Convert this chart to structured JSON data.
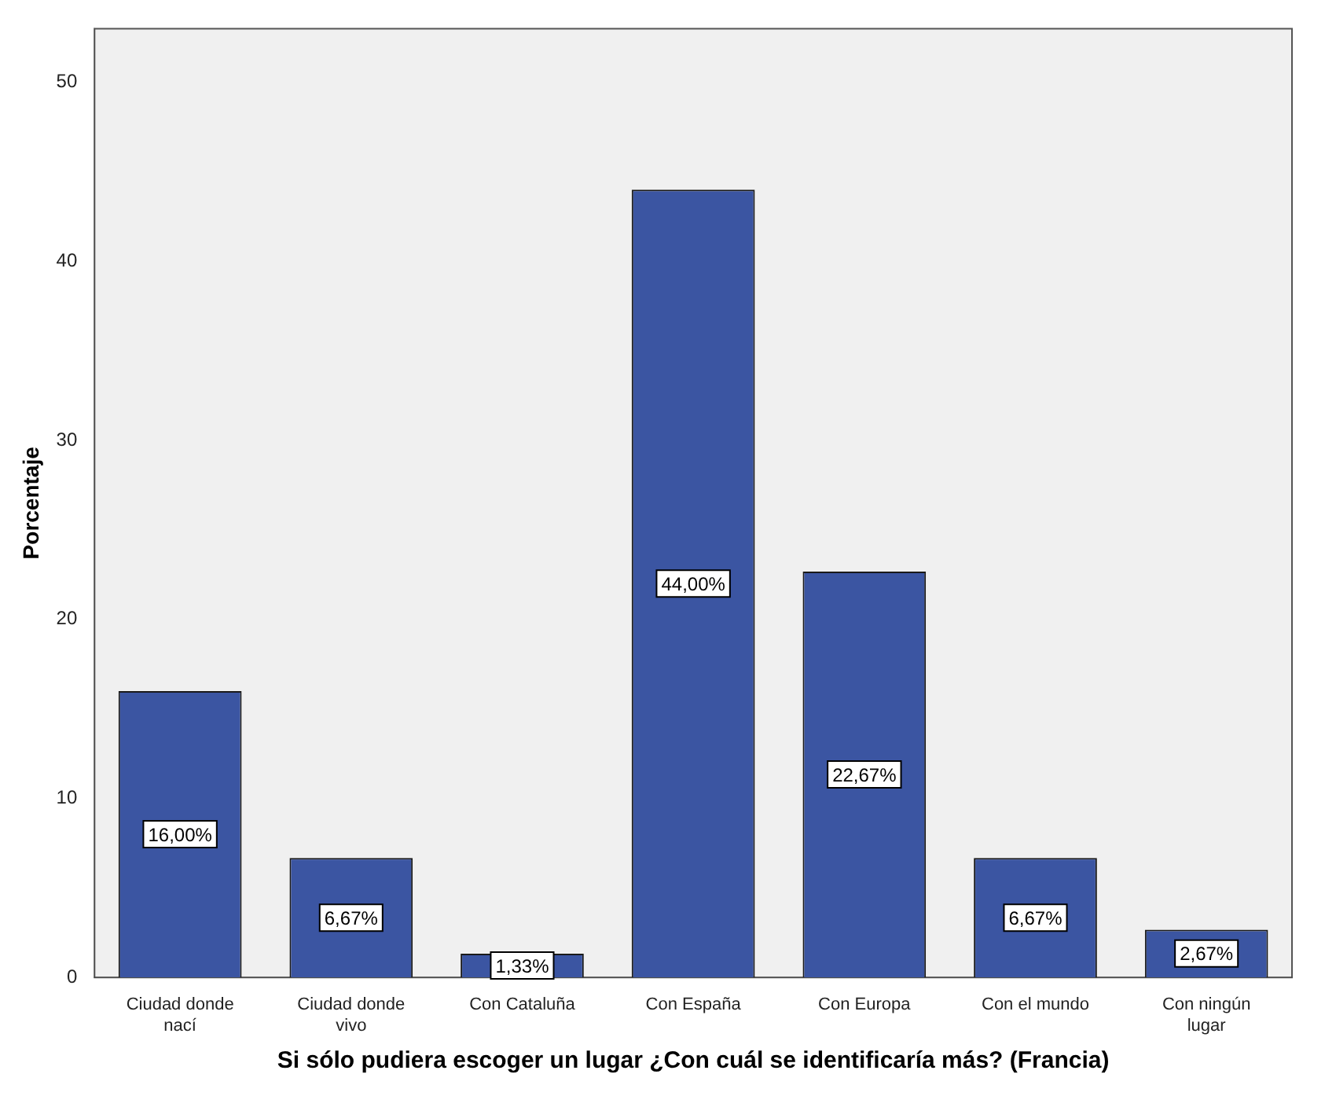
{
  "chart_data": {
    "type": "bar",
    "xlabel": "Si sólo pudiera escoger un lugar ¿Con cuál se identificaría más? (Francia)",
    "ylabel": "Porcentaje",
    "categories": [
      "Ciudad donde nací",
      "Ciudad donde vivo",
      "Con Cataluña",
      "Con España",
      "Con Europa",
      "Con el mundo",
      "Con ningún lugar"
    ],
    "values": [
      16.0,
      6.67,
      1.33,
      44.0,
      22.67,
      6.67,
      2.67
    ],
    "value_labels": [
      "16,00%",
      "6,67%",
      "1,33%",
      "44,00%",
      "22,67%",
      "6,67%",
      "2,67%"
    ],
    "color": "#3b55a2",
    "ylim": [
      0,
      53
    ],
    "yticks": [
      0,
      10,
      20,
      30,
      40,
      50
    ],
    "grid": false,
    "legend": false
  }
}
